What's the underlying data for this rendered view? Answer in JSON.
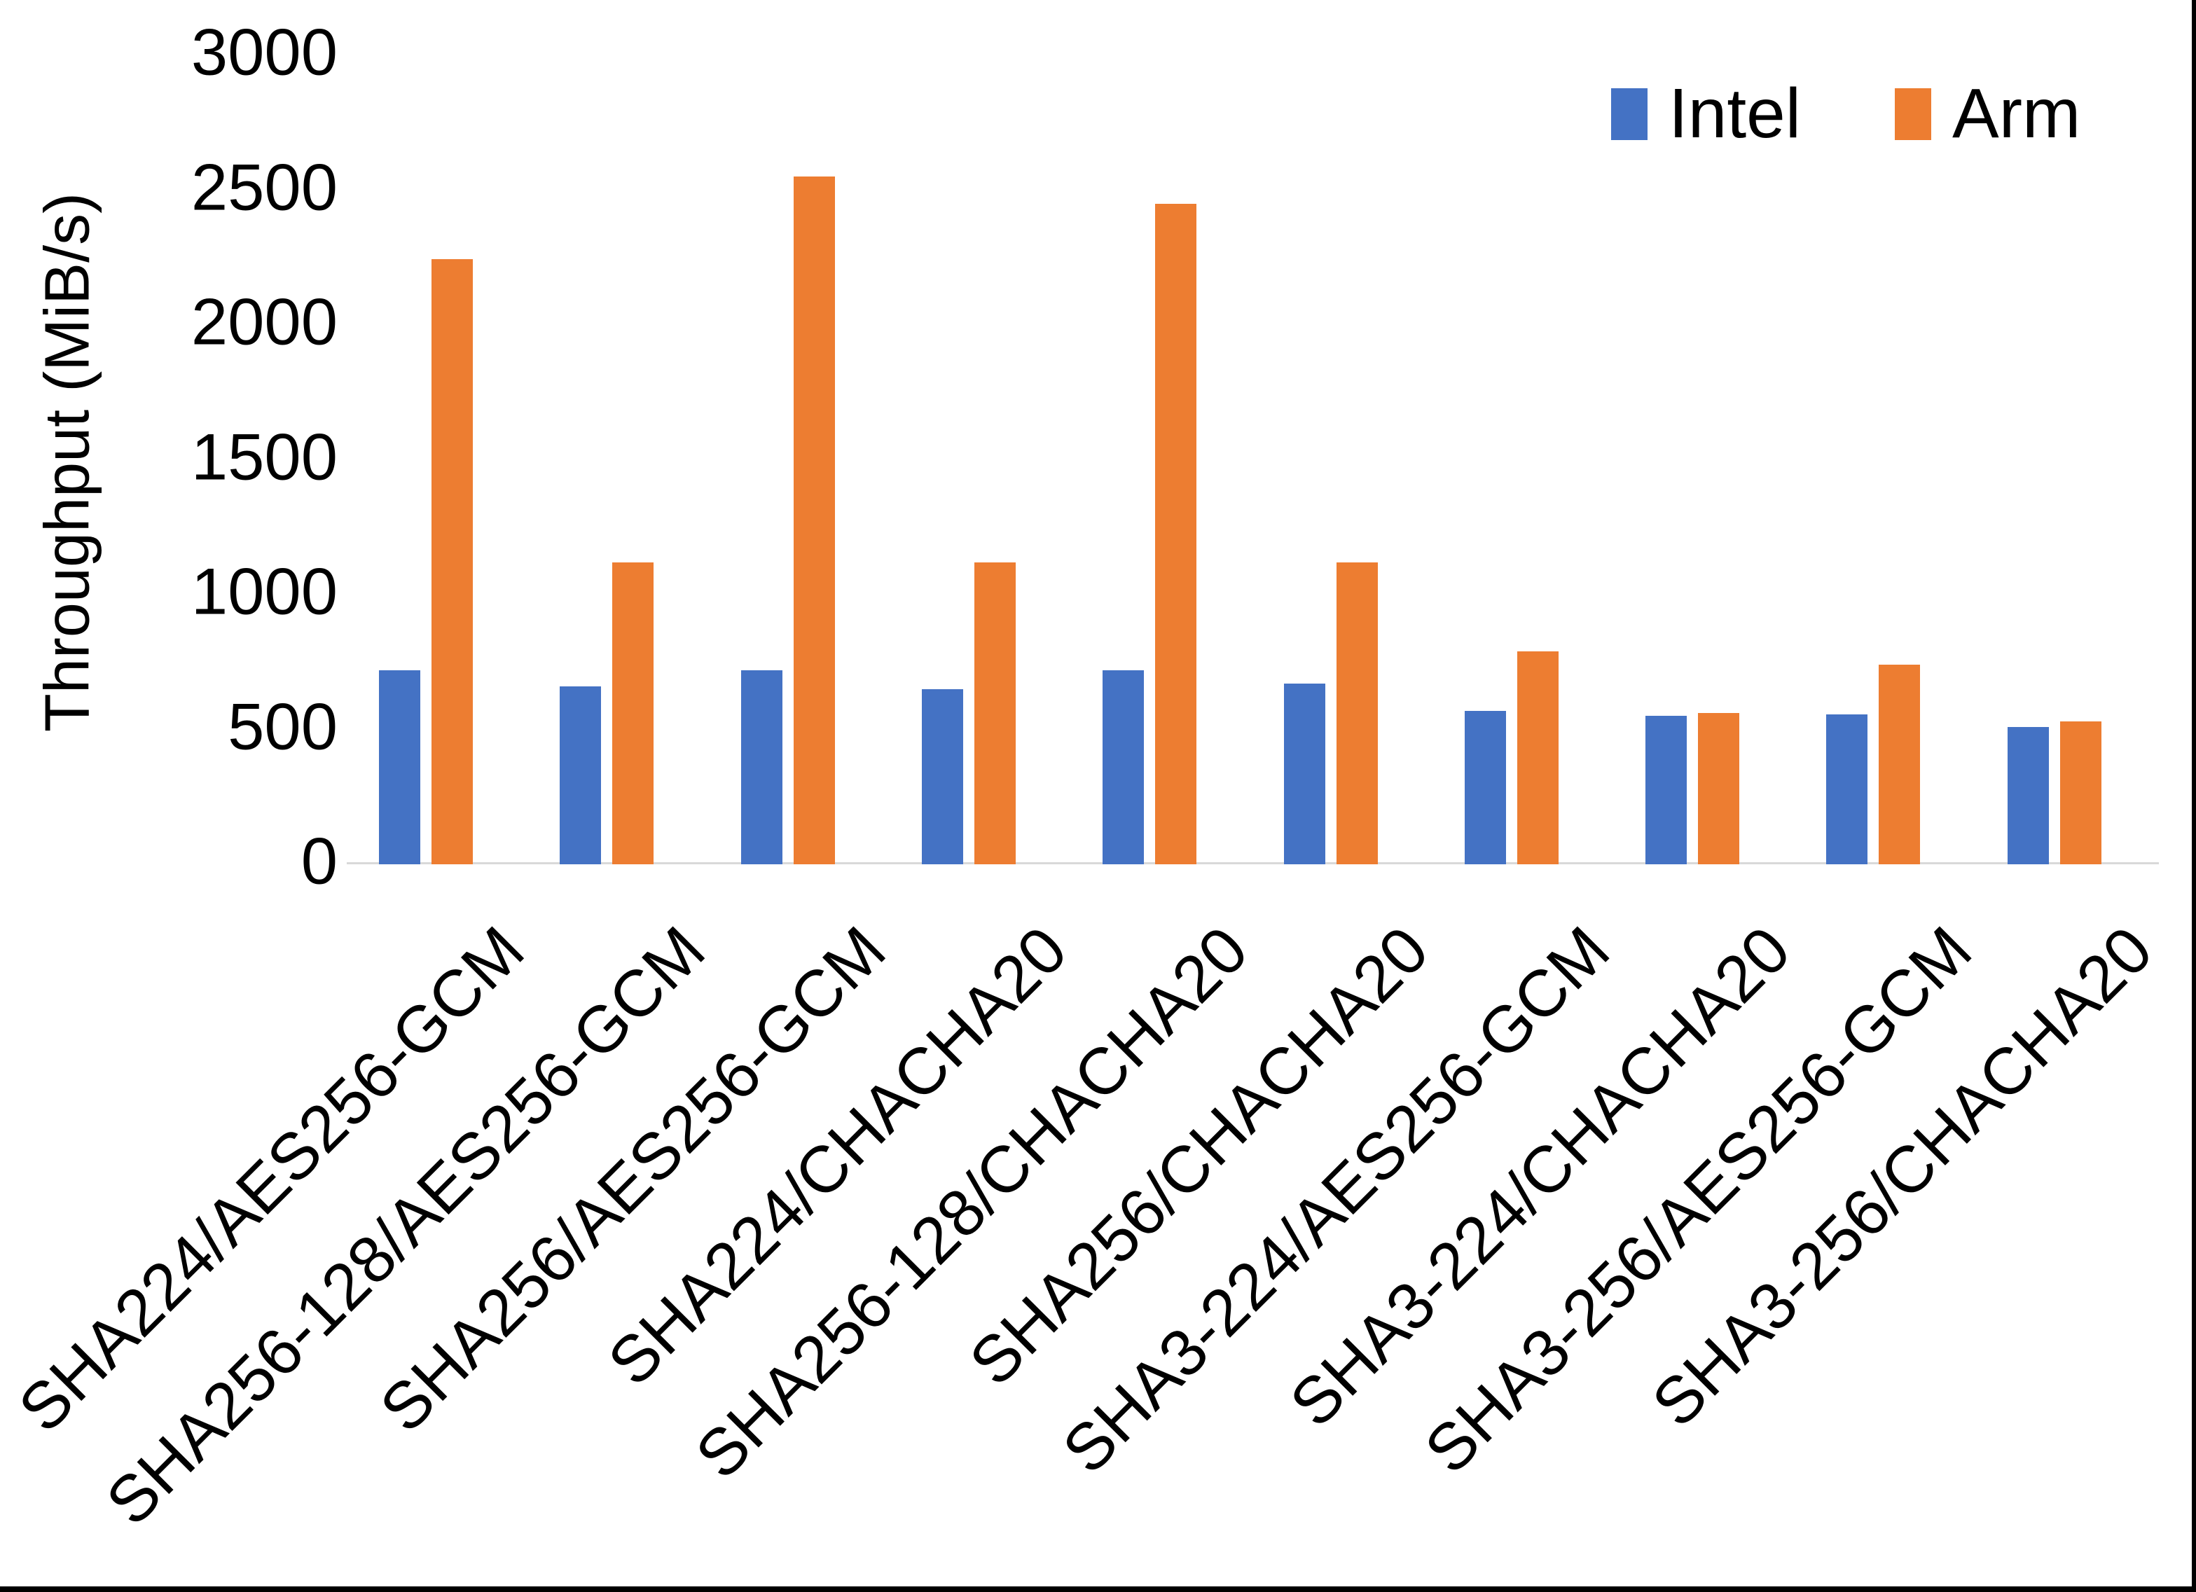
{
  "chart_data": {
    "type": "bar",
    "title": "",
    "xlabel": "",
    "ylabel": "Throughput (MiB/s)",
    "ylim": [
      0,
      3000
    ],
    "yticks": [
      0,
      500,
      1000,
      1500,
      2000,
      2500,
      3000
    ],
    "grid": false,
    "legend_position": "top-right",
    "axis_line_color": "#D9D9D9",
    "background_color": "#FFFFFF",
    "frame_color": "#000000",
    "categories": [
      "SHA224/AES256-GCM",
      "SHA256-128/AES256-GCM",
      "SHA256/AES256-GCM",
      "SHA224/CHACHA20",
      "SHA256-128/CHACHA20",
      "SHA256/CHACHA20",
      "SHA3-224/AES256-GCM",
      "SHA3-224/CHACHA20",
      "SHA3-256/AES256-GCM",
      "SHA3-256/CHACHA20"
    ],
    "series": [
      {
        "name": "Intel",
        "color": "#4472C4",
        "values": [
          720,
          660,
          720,
          650,
          720,
          670,
          570,
          550,
          555,
          510
        ]
      },
      {
        "name": "Arm",
        "color": "#ED7D31",
        "values": [
          2245,
          1120,
          2550,
          1120,
          2450,
          1120,
          790,
          560,
          740,
          530
        ]
      }
    ]
  }
}
